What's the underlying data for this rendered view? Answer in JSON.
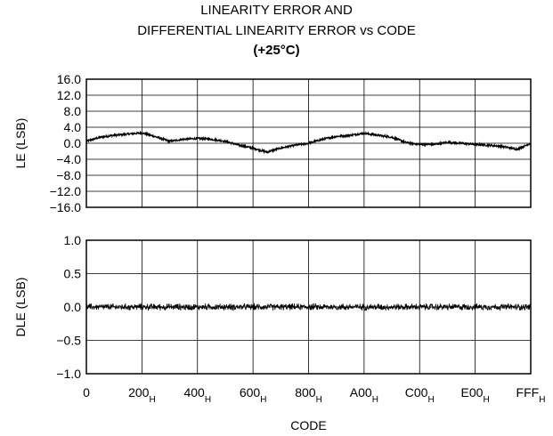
{
  "title_lines": [
    "LINEARITY ERROR AND",
    "DIFFERENTIAL LINEARITY ERROR vs CODE",
    "(+25°C)"
  ],
  "x_axis": {
    "label": "CODE",
    "ticks": [
      {
        "base": "0",
        "sub": ""
      },
      {
        "base": "200",
        "sub": "H"
      },
      {
        "base": "400",
        "sub": "H"
      },
      {
        "base": "600",
        "sub": "H"
      },
      {
        "base": "800",
        "sub": "H"
      },
      {
        "base": "A00",
        "sub": "H"
      },
      {
        "base": "C00",
        "sub": "H"
      },
      {
        "base": "E00",
        "sub": "H"
      },
      {
        "base": "FFF",
        "sub": "H"
      }
    ]
  },
  "chart_data": [
    {
      "type": "line",
      "ylabel": "LE (LSB)",
      "xlabel": "CODE",
      "ylim": [
        -16.0,
        16.0
      ],
      "yticks": [
        "16.0",
        "12.0",
        "8.0",
        "4.0",
        "0.0",
        "−4.0",
        "−8.0",
        "−12.0",
        "−16.0"
      ],
      "grid": true,
      "x": [
        0,
        128,
        256,
        384,
        512,
        640,
        768,
        896,
        1024,
        1152,
        1280,
        1408,
        1536,
        1664,
        1792,
        1920,
        2048,
        2176,
        2304,
        2432,
        2560,
        2688,
        2816,
        2944,
        3072,
        3200,
        3328,
        3456,
        3584,
        3712,
        3840,
        3968,
        4095
      ],
      "series": [
        {
          "values": [
            0.5,
            1.5,
            2.0,
            2.3,
            2.6,
            1.6,
            0.5,
            1.0,
            1.2,
            1.0,
            0.5,
            -0.5,
            -1.2,
            -2.2,
            -1.2,
            -0.5,
            0.0,
            1.0,
            1.7,
            2.0,
            2.5,
            2.0,
            1.5,
            0.2,
            -0.3,
            -0.3,
            0.2,
            0.0,
            -0.3,
            -0.5,
            -0.8,
            -1.5,
            0.0
          ]
        }
      ]
    },
    {
      "type": "line",
      "ylabel": "DLE (LSB)",
      "xlabel": "CODE",
      "ylim": [
        -1.0,
        1.0
      ],
      "yticks": [
        "1.0",
        "0.5",
        "0.0",
        "−0.5",
        "−1.0"
      ],
      "grid": true,
      "noise_band": 0.05,
      "series": [
        {
          "mean": 0.0,
          "peak_to_peak": 0.12
        }
      ]
    }
  ]
}
